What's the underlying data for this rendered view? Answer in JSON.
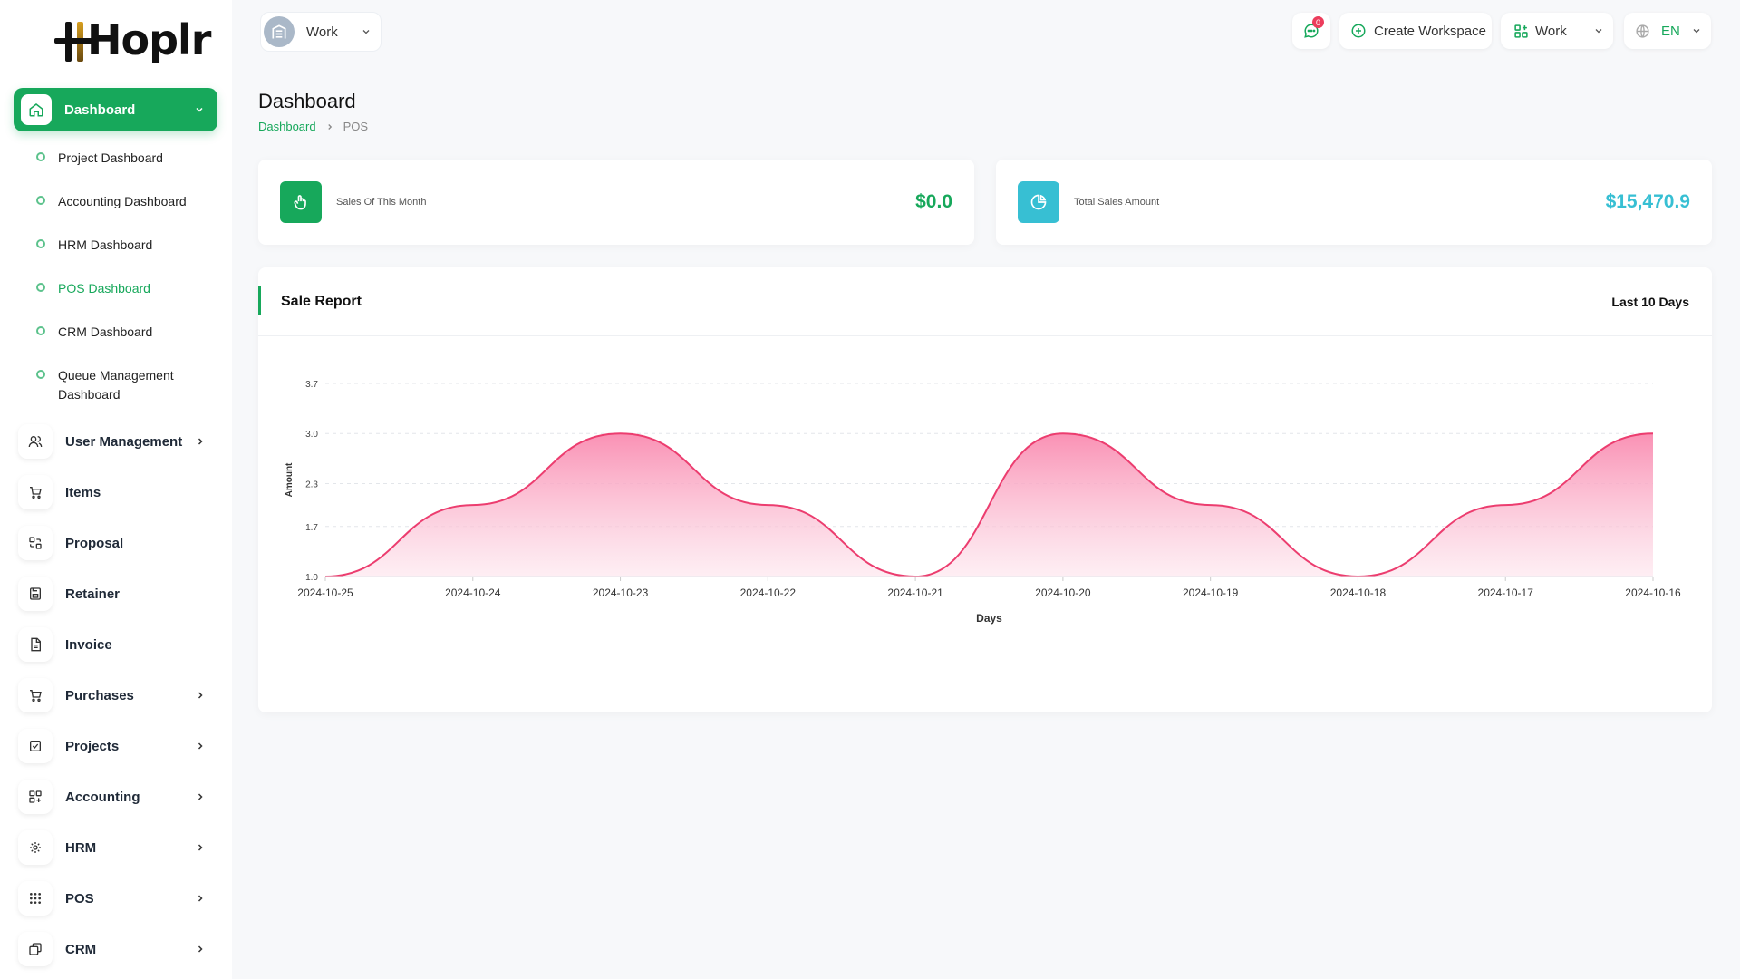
{
  "brand": {
    "logo_text": "Hoplr"
  },
  "sidebar": {
    "active": {
      "label": "Dashboard",
      "icon": "home-icon"
    },
    "sub_items": [
      {
        "label": "Project Dashboard"
      },
      {
        "label": "Accounting Dashboard"
      },
      {
        "label": "HRM Dashboard"
      },
      {
        "label": "POS Dashboard",
        "active": true
      },
      {
        "label": "CRM Dashboard"
      },
      {
        "label": "Queue Management Dashboard"
      }
    ],
    "items": [
      {
        "label": "User Management",
        "icon": "users-icon",
        "has_children": true
      },
      {
        "label": "Items",
        "icon": "cart-icon",
        "has_children": false
      },
      {
        "label": "Proposal",
        "icon": "proposal-icon",
        "has_children": false
      },
      {
        "label": "Retainer",
        "icon": "save-icon",
        "has_children": false
      },
      {
        "label": "Invoice",
        "icon": "document-icon",
        "has_children": false
      },
      {
        "label": "Purchases",
        "icon": "cart-icon",
        "has_children": true
      },
      {
        "label": "Projects",
        "icon": "checkbox-icon",
        "has_children": true
      },
      {
        "label": "Accounting",
        "icon": "grid-plus-icon",
        "has_children": true
      },
      {
        "label": "HRM",
        "icon": "hrm-icon",
        "has_children": true
      },
      {
        "label": "POS",
        "icon": "dots-grid-icon",
        "has_children": true
      },
      {
        "label": "CRM",
        "icon": "crm-icon",
        "has_children": true
      }
    ]
  },
  "header": {
    "workspace_label": "Work",
    "messages_badge": "0",
    "create_workspace_label": "Create Workspace",
    "work_label": "Work",
    "language_label": "EN"
  },
  "page": {
    "title": "Dashboard",
    "breadcrumb": [
      "Dashboard",
      "POS"
    ]
  },
  "stats": [
    {
      "label": "Sales Of This Month",
      "value": "$0.0",
      "color": "#17a85b",
      "icon": "hand-pointer-icon"
    },
    {
      "label": "Total Sales Amount",
      "value": "$15,470.9",
      "color": "#37bfd3",
      "icon": "pie-chart-icon"
    }
  ],
  "report": {
    "title": "Sale Report",
    "range_label": "Last 10 Days"
  },
  "chart_data": {
    "type": "area",
    "x": [
      "2024-10-25",
      "2024-10-24",
      "2024-10-23",
      "2024-10-22",
      "2024-10-21",
      "2024-10-20",
      "2024-10-19",
      "2024-10-18",
      "2024-10-17",
      "2024-10-16"
    ],
    "series": [
      {
        "values": [
          1,
          2,
          3,
          2,
          1,
          3,
          2,
          1,
          2,
          3
        ]
      }
    ],
    "xlabel": "Days",
    "ylabel": "Amount",
    "yticks": [
      "1.0",
      "1.7",
      "2.3",
      "3.0",
      "3.7"
    ],
    "ylim": [
      1,
      3.7
    ],
    "grid": true,
    "colors": {
      "line": "#ec3d6f",
      "fill_top": "#f98bb0",
      "fill_bottom": "#fde3ec"
    }
  },
  "colors": {
    "accent": "#17a85b",
    "secondary": "#37bfd3",
    "badge": "#ec3d5c"
  }
}
